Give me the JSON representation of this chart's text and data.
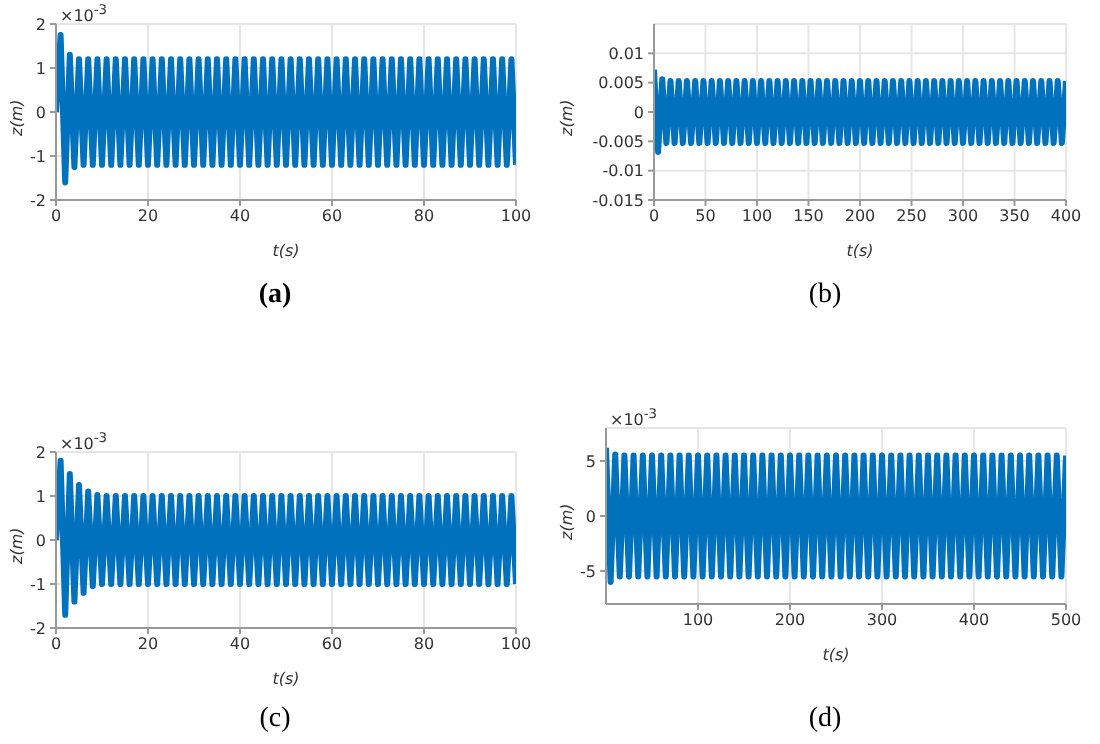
{
  "chart_data": [
    {
      "type": "line",
      "title": "(a)",
      "xlabel": "t(s)",
      "ylabel": "z(m)",
      "annotations": [
        "×10$^{-3}$"
      ],
      "grid": true,
      "xlim": [
        0,
        100
      ],
      "xticks": [
        0,
        20,
        40,
        60,
        80,
        100
      ],
      "ylim": [
        -2,
        2
      ],
      "yticks": [
        -2,
        -1,
        0,
        1,
        2
      ],
      "x": [
        0,
        1,
        2,
        3,
        4,
        5,
        6,
        7,
        8,
        9,
        10,
        11,
        12,
        13,
        14,
        15,
        16,
        17,
        18,
        19,
        20,
        21,
        22,
        23,
        24,
        25,
        26,
        27,
        28,
        29,
        30,
        31,
        32,
        33,
        34,
        35,
        36,
        37,
        38,
        39,
        40,
        41,
        42,
        43,
        44,
        45,
        46,
        47,
        48,
        49,
        50,
        51,
        52,
        53,
        54,
        55,
        56,
        57,
        58,
        59,
        60,
        61,
        62,
        63,
        64,
        65,
        66,
        67,
        68,
        69,
        70,
        71,
        72,
        73,
        74,
        75,
        76,
        77,
        78,
        79,
        80,
        81,
        82,
        83,
        84,
        85,
        86,
        87,
        88,
        89,
        90,
        91,
        92,
        93,
        94,
        95,
        96,
        97,
        98,
        99,
        100
      ],
      "series": [
        {
          "color": "#0072bd",
          "values": [
            0,
            1.75,
            -1.6,
            1.3,
            -1.25,
            1.2,
            -1.2,
            1.2,
            -1.2,
            1.2,
            -1.2,
            1.2,
            -1.2,
            1.2,
            -1.2,
            1.2,
            -1.2,
            1.2,
            -1.2,
            1.2,
            -1.2,
            1.2,
            -1.2,
            1.2,
            -1.2,
            1.2,
            -1.2,
            1.2,
            -1.2,
            1.2,
            -1.2,
            1.2,
            -1.2,
            1.2,
            -1.2,
            1.2,
            -1.2,
            1.2,
            -1.2,
            1.2,
            -1.2,
            1.2,
            -1.2,
            1.2,
            -1.2,
            1.2,
            -1.2,
            1.2,
            -1.2,
            1.2,
            -1.2,
            1.2,
            -1.2,
            1.2,
            -1.2,
            1.2,
            -1.2,
            1.2,
            -1.2,
            1.2,
            -1.2,
            1.2,
            -1.2,
            1.2,
            -1.2,
            1.2,
            -1.2,
            1.2,
            -1.2,
            1.2,
            -1.2,
            1.2,
            -1.2,
            1.2,
            -1.2,
            1.2,
            -1.2,
            1.2,
            -1.2,
            1.2,
            -1.2,
            1.2,
            -1.2,
            1.2,
            -1.2,
            1.2,
            -1.2,
            1.2,
            -1.2,
            1.2,
            -1.2,
            1.2,
            -1.2,
            1.2,
            -1.2,
            1.2,
            -1.2,
            1.2,
            -1.2,
            1.2,
            -1.2
          ]
        }
      ]
    },
    {
      "type": "line",
      "title": "(b)",
      "xlabel": "t(s)",
      "ylabel": "z(m)",
      "grid": true,
      "xlim": [
        0,
        400
      ],
      "xticks": [
        0,
        50,
        100,
        150,
        200,
        250,
        300,
        350,
        400
      ],
      "ylim": [
        -0.015,
        0.015
      ],
      "yticks": [
        -0.015,
        -0.01,
        -0.005,
        0,
        0.005,
        0.01
      ],
      "x": [
        0,
        4,
        8,
        12,
        16,
        20,
        24,
        28,
        32,
        36,
        40,
        44,
        48,
        52,
        56,
        60,
        64,
        68,
        72,
        76,
        80,
        84,
        88,
        92,
        96,
        100,
        104,
        108,
        112,
        116,
        120,
        124,
        128,
        132,
        136,
        140,
        144,
        148,
        152,
        156,
        160,
        164,
        168,
        172,
        176,
        180,
        184,
        188,
        192,
        196,
        200,
        204,
        208,
        212,
        216,
        220,
        224,
        228,
        232,
        236,
        240,
        244,
        248,
        252,
        256,
        260,
        264,
        268,
        272,
        276,
        280,
        284,
        288,
        292,
        296,
        300,
        304,
        308,
        312,
        316,
        320,
        324,
        328,
        332,
        336,
        340,
        344,
        348,
        352,
        356,
        360,
        364,
        368,
        372,
        376,
        380,
        384,
        388,
        392,
        396,
        400
      ],
      "series": [
        {
          "color": "#0072bd",
          "values": [
            0.0072,
            -0.0068,
            0.0056,
            -0.0053,
            0.0053,
            -0.0053,
            0.0053,
            -0.0053,
            0.0053,
            -0.0053,
            0.0053,
            -0.0053,
            0.0053,
            -0.0053,
            0.0053,
            -0.0053,
            0.0053,
            -0.0053,
            0.0053,
            -0.0053,
            0.0053,
            -0.0053,
            0.0053,
            -0.0053,
            0.0053,
            -0.0053,
            0.0053,
            -0.0053,
            0.0053,
            -0.0053,
            0.0053,
            -0.0053,
            0.0053,
            -0.0053,
            0.0053,
            -0.0053,
            0.0053,
            -0.0053,
            0.0053,
            -0.0053,
            0.0053,
            -0.0053,
            0.0053,
            -0.0053,
            0.0053,
            -0.0053,
            0.0053,
            -0.0053,
            0.0053,
            -0.0053,
            0.0053,
            -0.0053,
            0.0053,
            -0.0053,
            0.0053,
            -0.0053,
            0.0053,
            -0.0053,
            0.0053,
            -0.0053,
            0.0053,
            -0.0053,
            0.0053,
            -0.0053,
            0.0053,
            -0.0053,
            0.0053,
            -0.0053,
            0.0053,
            -0.0053,
            0.0053,
            -0.0053,
            0.0053,
            -0.0053,
            0.0053,
            -0.0053,
            0.0053,
            -0.0053,
            0.0053,
            -0.0053,
            0.0053,
            -0.0053,
            0.0053,
            -0.0053,
            0.0053,
            -0.0053,
            0.0053,
            -0.0053,
            0.0053,
            -0.0053,
            0.0053,
            -0.0053,
            0.0053,
            -0.0053,
            0.0053,
            -0.0053,
            0.0053,
            -0.0053,
            0.0053,
            -0.0053,
            0.0053
          ]
        }
      ]
    },
    {
      "type": "line",
      "title": "(c)",
      "xlabel": "t(s)",
      "ylabel": "z(m)",
      "annotations": [
        "×10$^{-3}$"
      ],
      "grid": true,
      "xlim": [
        0,
        100
      ],
      "xticks": [
        0,
        20,
        40,
        60,
        80,
        100
      ],
      "ylim": [
        -2,
        2
      ],
      "yticks": [
        -2,
        -1,
        0,
        1,
        2
      ],
      "x": [
        0,
        1,
        2,
        3,
        4,
        5,
        6,
        7,
        8,
        9,
        10,
        11,
        12,
        13,
        14,
        15,
        16,
        17,
        18,
        19,
        20,
        21,
        22,
        23,
        24,
        25,
        26,
        27,
        28,
        29,
        30,
        31,
        32,
        33,
        34,
        35,
        36,
        37,
        38,
        39,
        40,
        41,
        42,
        43,
        44,
        45,
        46,
        47,
        48,
        49,
        50,
        51,
        52,
        53,
        54,
        55,
        56,
        57,
        58,
        59,
        60,
        61,
        62,
        63,
        64,
        65,
        66,
        67,
        68,
        69,
        70,
        71,
        72,
        73,
        74,
        75,
        76,
        77,
        78,
        79,
        80,
        81,
        82,
        83,
        84,
        85,
        86,
        87,
        88,
        89,
        90,
        91,
        92,
        93,
        94,
        95,
        96,
        97,
        98,
        99,
        100
      ],
      "series": [
        {
          "color": "#0072bd",
          "values": [
            0,
            1.8,
            -1.7,
            1.5,
            -1.4,
            1.25,
            -1.2,
            1.1,
            -1.05,
            1.02,
            -1,
            1,
            -1,
            1,
            -1,
            1,
            -1,
            1,
            -1,
            1,
            -1,
            1,
            -1,
            1,
            -1,
            1,
            -1,
            1,
            -1,
            1,
            -1,
            1,
            -1,
            1,
            -1,
            1,
            -1,
            1,
            -1,
            1,
            -1,
            1,
            -1,
            1,
            -1,
            1,
            -1,
            1,
            -1,
            1,
            -1,
            1,
            -1,
            1,
            -1,
            1,
            -1,
            1,
            -1,
            1,
            -1,
            1,
            -1,
            1,
            -1,
            1,
            -1,
            1,
            -1,
            1,
            -1,
            1,
            -1,
            1,
            -1,
            1,
            -1,
            1,
            -1,
            1,
            -1,
            1,
            -1,
            1,
            -1,
            1,
            -1,
            1,
            -1,
            1,
            -1,
            1,
            -1,
            1,
            -1,
            1,
            -1,
            1,
            -1,
            1,
            -1
          ]
        }
      ]
    },
    {
      "type": "line",
      "title": "(d)",
      "xlabel": "t(s)",
      "ylabel": "z(m)",
      "annotations": [
        "×10$^{-3}$"
      ],
      "grid": true,
      "xlim": [
        0,
        500
      ],
      "xticks": [
        100,
        200,
        300,
        400,
        500
      ],
      "ylim": [
        -8,
        8
      ],
      "yticks": [
        -5,
        0,
        5
      ],
      "x": [
        0,
        5,
        10,
        15,
        20,
        25,
        30,
        35,
        40,
        45,
        50,
        55,
        60,
        65,
        70,
        75,
        80,
        85,
        90,
        95,
        100,
        105,
        110,
        115,
        120,
        125,
        130,
        135,
        140,
        145,
        150,
        155,
        160,
        165,
        170,
        175,
        180,
        185,
        190,
        195,
        200,
        205,
        210,
        215,
        220,
        225,
        230,
        235,
        240,
        245,
        250,
        255,
        260,
        265,
        270,
        275,
        280,
        285,
        290,
        295,
        300,
        305,
        310,
        315,
        320,
        325,
        330,
        335,
        340,
        345,
        350,
        355,
        360,
        365,
        370,
        375,
        380,
        385,
        390,
        395,
        400,
        405,
        410,
        415,
        420,
        425,
        430,
        435,
        440,
        445,
        450,
        455,
        460,
        465,
        470,
        475,
        480,
        485,
        490,
        495,
        500
      ],
      "series": [
        {
          "color": "#0072bd",
          "values": [
            6.2,
            -6,
            5.6,
            -5.5,
            5.5,
            -5.5,
            5.5,
            -5.5,
            5.5,
            -5.5,
            5.5,
            -5.5,
            5.5,
            -5.5,
            5.5,
            -5.5,
            5.5,
            -5.5,
            5.5,
            -5.5,
            5.5,
            -5.5,
            5.5,
            -5.5,
            5.5,
            -5.5,
            5.5,
            -5.5,
            5.5,
            -5.5,
            5.5,
            -5.5,
            5.5,
            -5.5,
            5.5,
            -5.5,
            5.5,
            -5.5,
            5.5,
            -5.5,
            5.5,
            -5.5,
            5.5,
            -5.5,
            5.5,
            -5.5,
            5.5,
            -5.5,
            5.5,
            -5.5,
            5.5,
            -5.5,
            5.5,
            -5.5,
            5.5,
            -5.5,
            5.5,
            -5.5,
            5.5,
            -5.5,
            5.5,
            -5.5,
            5.5,
            -5.5,
            5.5,
            -5.5,
            5.5,
            -5.5,
            5.5,
            -5.5,
            5.5,
            -5.5,
            5.5,
            -5.5,
            5.5,
            -5.5,
            5.5,
            -5.5,
            5.5,
            -5.5,
            5.5,
            -5.5,
            5.5,
            -5.5,
            5.5,
            -5.5,
            5.5,
            -5.5,
            5.5,
            -5.5,
            5.5,
            -5.5,
            5.5,
            -5.5,
            5.5,
            -5.5,
            5.5,
            -5.5,
            5.5,
            -5.5,
            5.5
          ]
        }
      ]
    }
  ]
}
